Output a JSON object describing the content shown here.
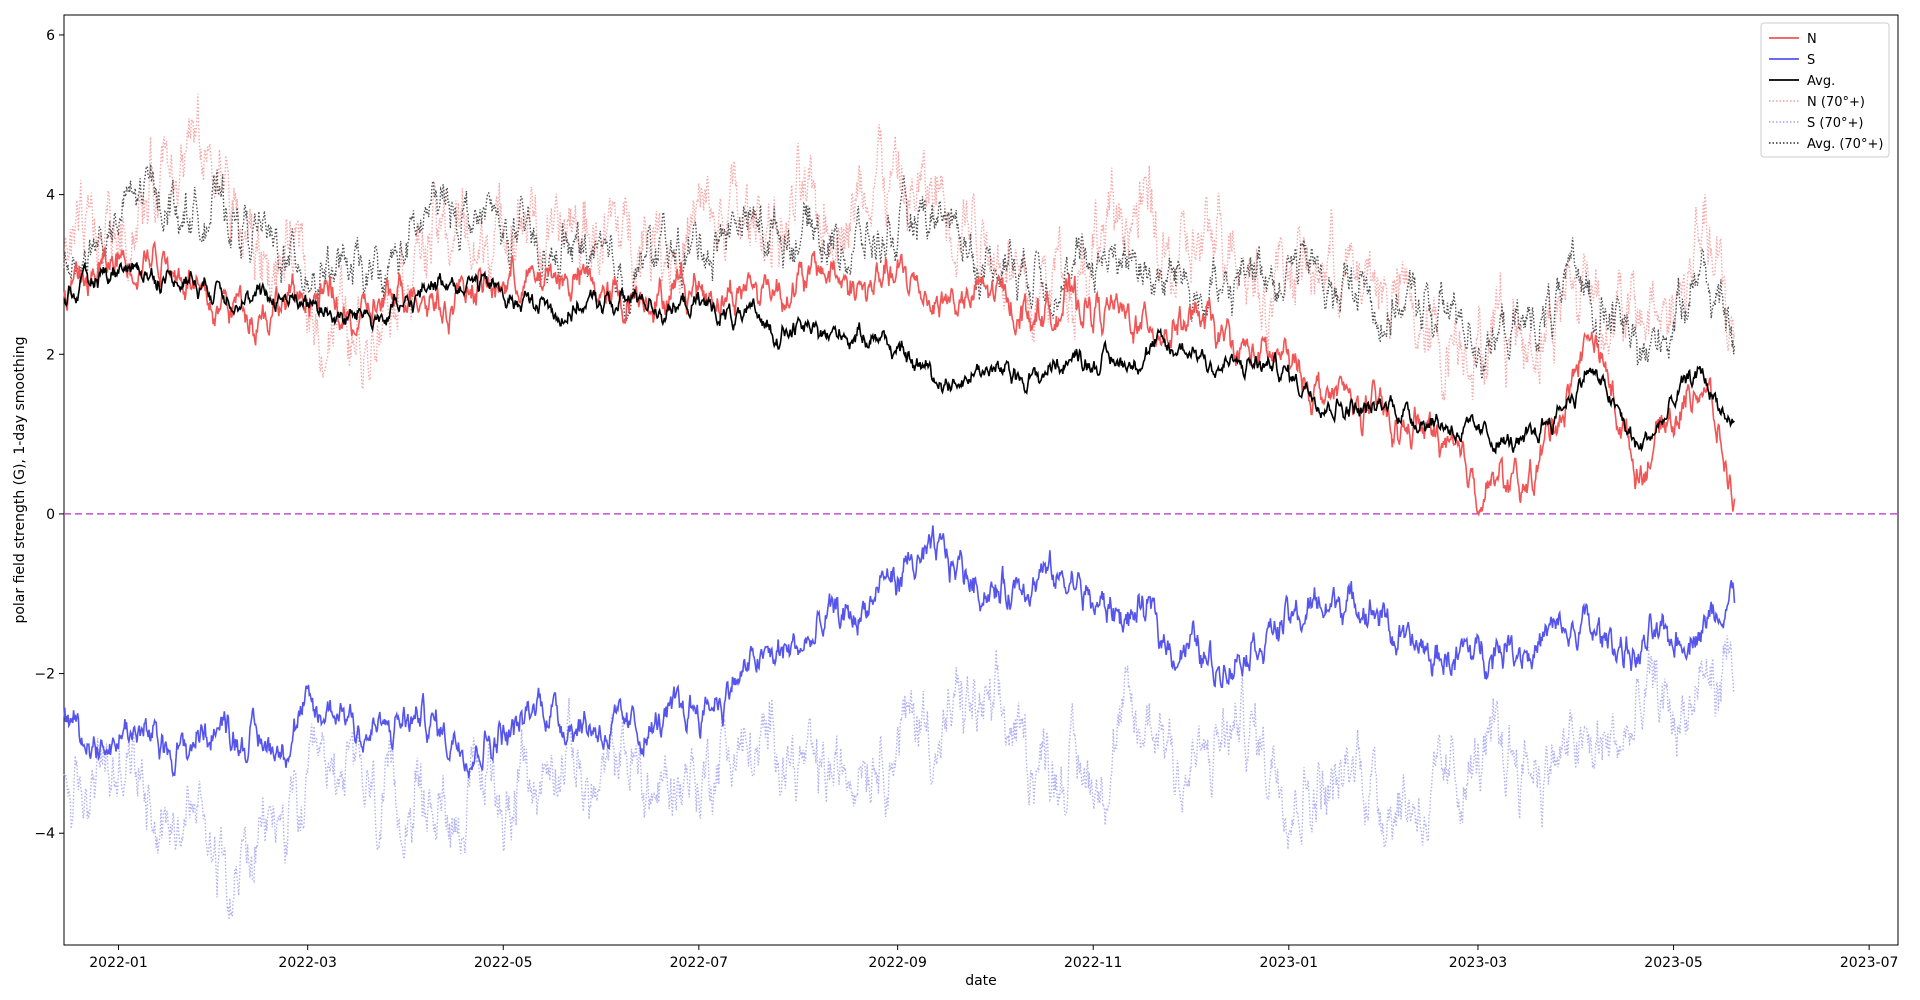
{
  "chart_data": {
    "type": "line",
    "title": "",
    "xlabel": "date",
    "ylabel": "polar field strength (G), 1-day smoothing",
    "xlim": [
      "2021-12-15",
      "2023-07-10"
    ],
    "ylim": [
      -5.4,
      6.25
    ],
    "yticks": [
      -4,
      -2,
      0,
      2,
      4,
      6
    ],
    "xticks": [
      {
        "date": "2022-01-01",
        "label": "2022-01"
      },
      {
        "date": "2022-03-01",
        "label": "2022-03"
      },
      {
        "date": "2022-05-01",
        "label": "2022-05"
      },
      {
        "date": "2022-07-01",
        "label": "2022-07"
      },
      {
        "date": "2022-09-01",
        "label": "2022-09"
      },
      {
        "date": "2022-11-01",
        "label": "2022-11"
      },
      {
        "date": "2023-01-01",
        "label": "2023-01"
      },
      {
        "date": "2023-03-01",
        "label": "2023-03"
      },
      {
        "date": "2023-05-01",
        "label": "2023-05"
      },
      {
        "date": "2023-07-01",
        "label": "2023-07"
      }
    ],
    "reference_line": {
      "y": 0,
      "color": "#c050d0",
      "style": "dashed"
    },
    "legend_position": "top-right",
    "date_range": [
      "2021-12-15",
      "2023-05-20"
    ],
    "series": [
      {
        "name": "N",
        "color": "#f25555",
        "style": "solid",
        "opacity": 1.0,
        "x": [
          "2021-12-15",
          "2022-01-15",
          "2022-02-15",
          "2022-03-15",
          "2022-04-15",
          "2022-05-15",
          "2022-06-15",
          "2022-07-15",
          "2022-08-15",
          "2022-09-15",
          "2022-10-15",
          "2022-11-15",
          "2022-12-15",
          "2023-01-15",
          "2023-02-15",
          "2023-03-15",
          "2023-04-05",
          "2023-04-20",
          "2023-05-10",
          "2023-05-20"
        ],
        "values": [
          2.8,
          3.2,
          2.6,
          2.5,
          2.8,
          2.9,
          2.8,
          2.8,
          3.0,
          2.8,
          2.7,
          2.4,
          2.2,
          1.5,
          1.0,
          0.3,
          2.1,
          0.5,
          1.9,
          0.2
        ]
      },
      {
        "name": "S",
        "color": "#5555ee",
        "style": "solid",
        "opacity": 1.0,
        "x": [
          "2021-12-15",
          "2022-01-15",
          "2022-02-15",
          "2022-03-15",
          "2022-04-15",
          "2022-05-15",
          "2022-06-15",
          "2022-07-15",
          "2022-08-15",
          "2022-09-15",
          "2022-10-15",
          "2022-11-15",
          "2022-12-15",
          "2023-01-15",
          "2023-02-15",
          "2023-03-15",
          "2023-04-05",
          "2023-04-20",
          "2023-05-10",
          "2023-05-20"
        ],
        "values": [
          -2.6,
          -2.8,
          -2.8,
          -2.6,
          -2.8,
          -2.3,
          -2.6,
          -1.9,
          -1.5,
          -0.6,
          -1.0,
          -1.4,
          -1.8,
          -1.0,
          -1.9,
          -1.6,
          -1.5,
          -1.7,
          -1.3,
          -1.3
        ]
      },
      {
        "name": "Avg.",
        "color": "#000000",
        "style": "solid",
        "opacity": 1.0,
        "x": [
          "2021-12-15",
          "2022-01-15",
          "2022-02-15",
          "2022-03-15",
          "2022-04-15",
          "2022-05-15",
          "2022-06-15",
          "2022-07-15",
          "2022-08-15",
          "2022-09-15",
          "2022-10-15",
          "2022-11-15",
          "2022-12-15",
          "2023-01-15",
          "2023-02-15",
          "2023-03-15",
          "2023-04-05",
          "2023-04-20",
          "2023-05-10",
          "2023-05-20"
        ],
        "values": [
          2.7,
          3.0,
          2.7,
          2.5,
          2.9,
          2.6,
          2.7,
          2.4,
          2.4,
          1.8,
          1.8,
          2.0,
          1.9,
          1.5,
          1.3,
          0.9,
          1.9,
          0.8,
          1.7,
          0.9
        ]
      },
      {
        "name": "N (70°+)",
        "color": "#f49999",
        "style": "dotted",
        "opacity": 0.85,
        "x": [
          "2021-12-15",
          "2022-01-15",
          "2022-02-15",
          "2022-03-15",
          "2022-04-15",
          "2022-05-15",
          "2022-06-15",
          "2022-07-15",
          "2022-08-15",
          "2022-09-15",
          "2022-10-15",
          "2022-11-15",
          "2022-12-15",
          "2023-01-15",
          "2023-02-15",
          "2023-03-15",
          "2023-04-05",
          "2023-04-20",
          "2023-05-10",
          "2023-05-20"
        ],
        "values": [
          3.0,
          4.5,
          3.0,
          2.4,
          3.6,
          3.3,
          3.5,
          3.6,
          4.0,
          3.6,
          3.3,
          3.4,
          3.2,
          3.0,
          2.4,
          2.2,
          3.0,
          2.2,
          3.5,
          2.0
        ]
      },
      {
        "name": "S (70°+)",
        "color": "#a8a8f0",
        "style": "dotted",
        "opacity": 0.9,
        "x": [
          "2021-12-15",
          "2022-01-15",
          "2022-02-15",
          "2022-03-15",
          "2022-04-15",
          "2022-05-15",
          "2022-06-15",
          "2022-07-15",
          "2022-08-15",
          "2022-09-15",
          "2022-10-15",
          "2022-11-15",
          "2022-12-15",
          "2023-01-15",
          "2023-02-15",
          "2023-03-15",
          "2023-04-05",
          "2023-04-20",
          "2023-05-10",
          "2023-05-20"
        ],
        "values": [
          -3.5,
          -3.8,
          -3.9,
          -3.6,
          -3.7,
          -3.4,
          -3.4,
          -3.0,
          -3.0,
          -2.6,
          -3.0,
          -3.0,
          -3.0,
          -3.0,
          -3.2,
          -2.6,
          -3.0,
          -2.8,
          -2.7,
          -2.3
        ]
      },
      {
        "name": "Avg. (70°+)",
        "color": "#444444",
        "style": "dotted",
        "opacity": 0.95,
        "x": [
          "2021-12-15",
          "2022-01-15",
          "2022-02-15",
          "2022-03-15",
          "2022-04-15",
          "2022-05-15",
          "2022-06-15",
          "2022-07-15",
          "2022-08-15",
          "2022-09-15",
          "2022-10-15",
          "2022-11-15",
          "2022-12-15",
          "2023-01-15",
          "2023-02-15",
          "2023-03-15",
          "2023-04-05",
          "2023-04-20",
          "2023-05-10",
          "2023-05-20"
        ],
        "values": [
          3.2,
          4.2,
          3.4,
          2.8,
          3.9,
          3.3,
          3.3,
          3.4,
          3.6,
          3.3,
          3.1,
          3.1,
          3.0,
          2.9,
          2.6,
          2.1,
          3.0,
          2.3,
          3.0,
          2.4
        ]
      }
    ]
  }
}
